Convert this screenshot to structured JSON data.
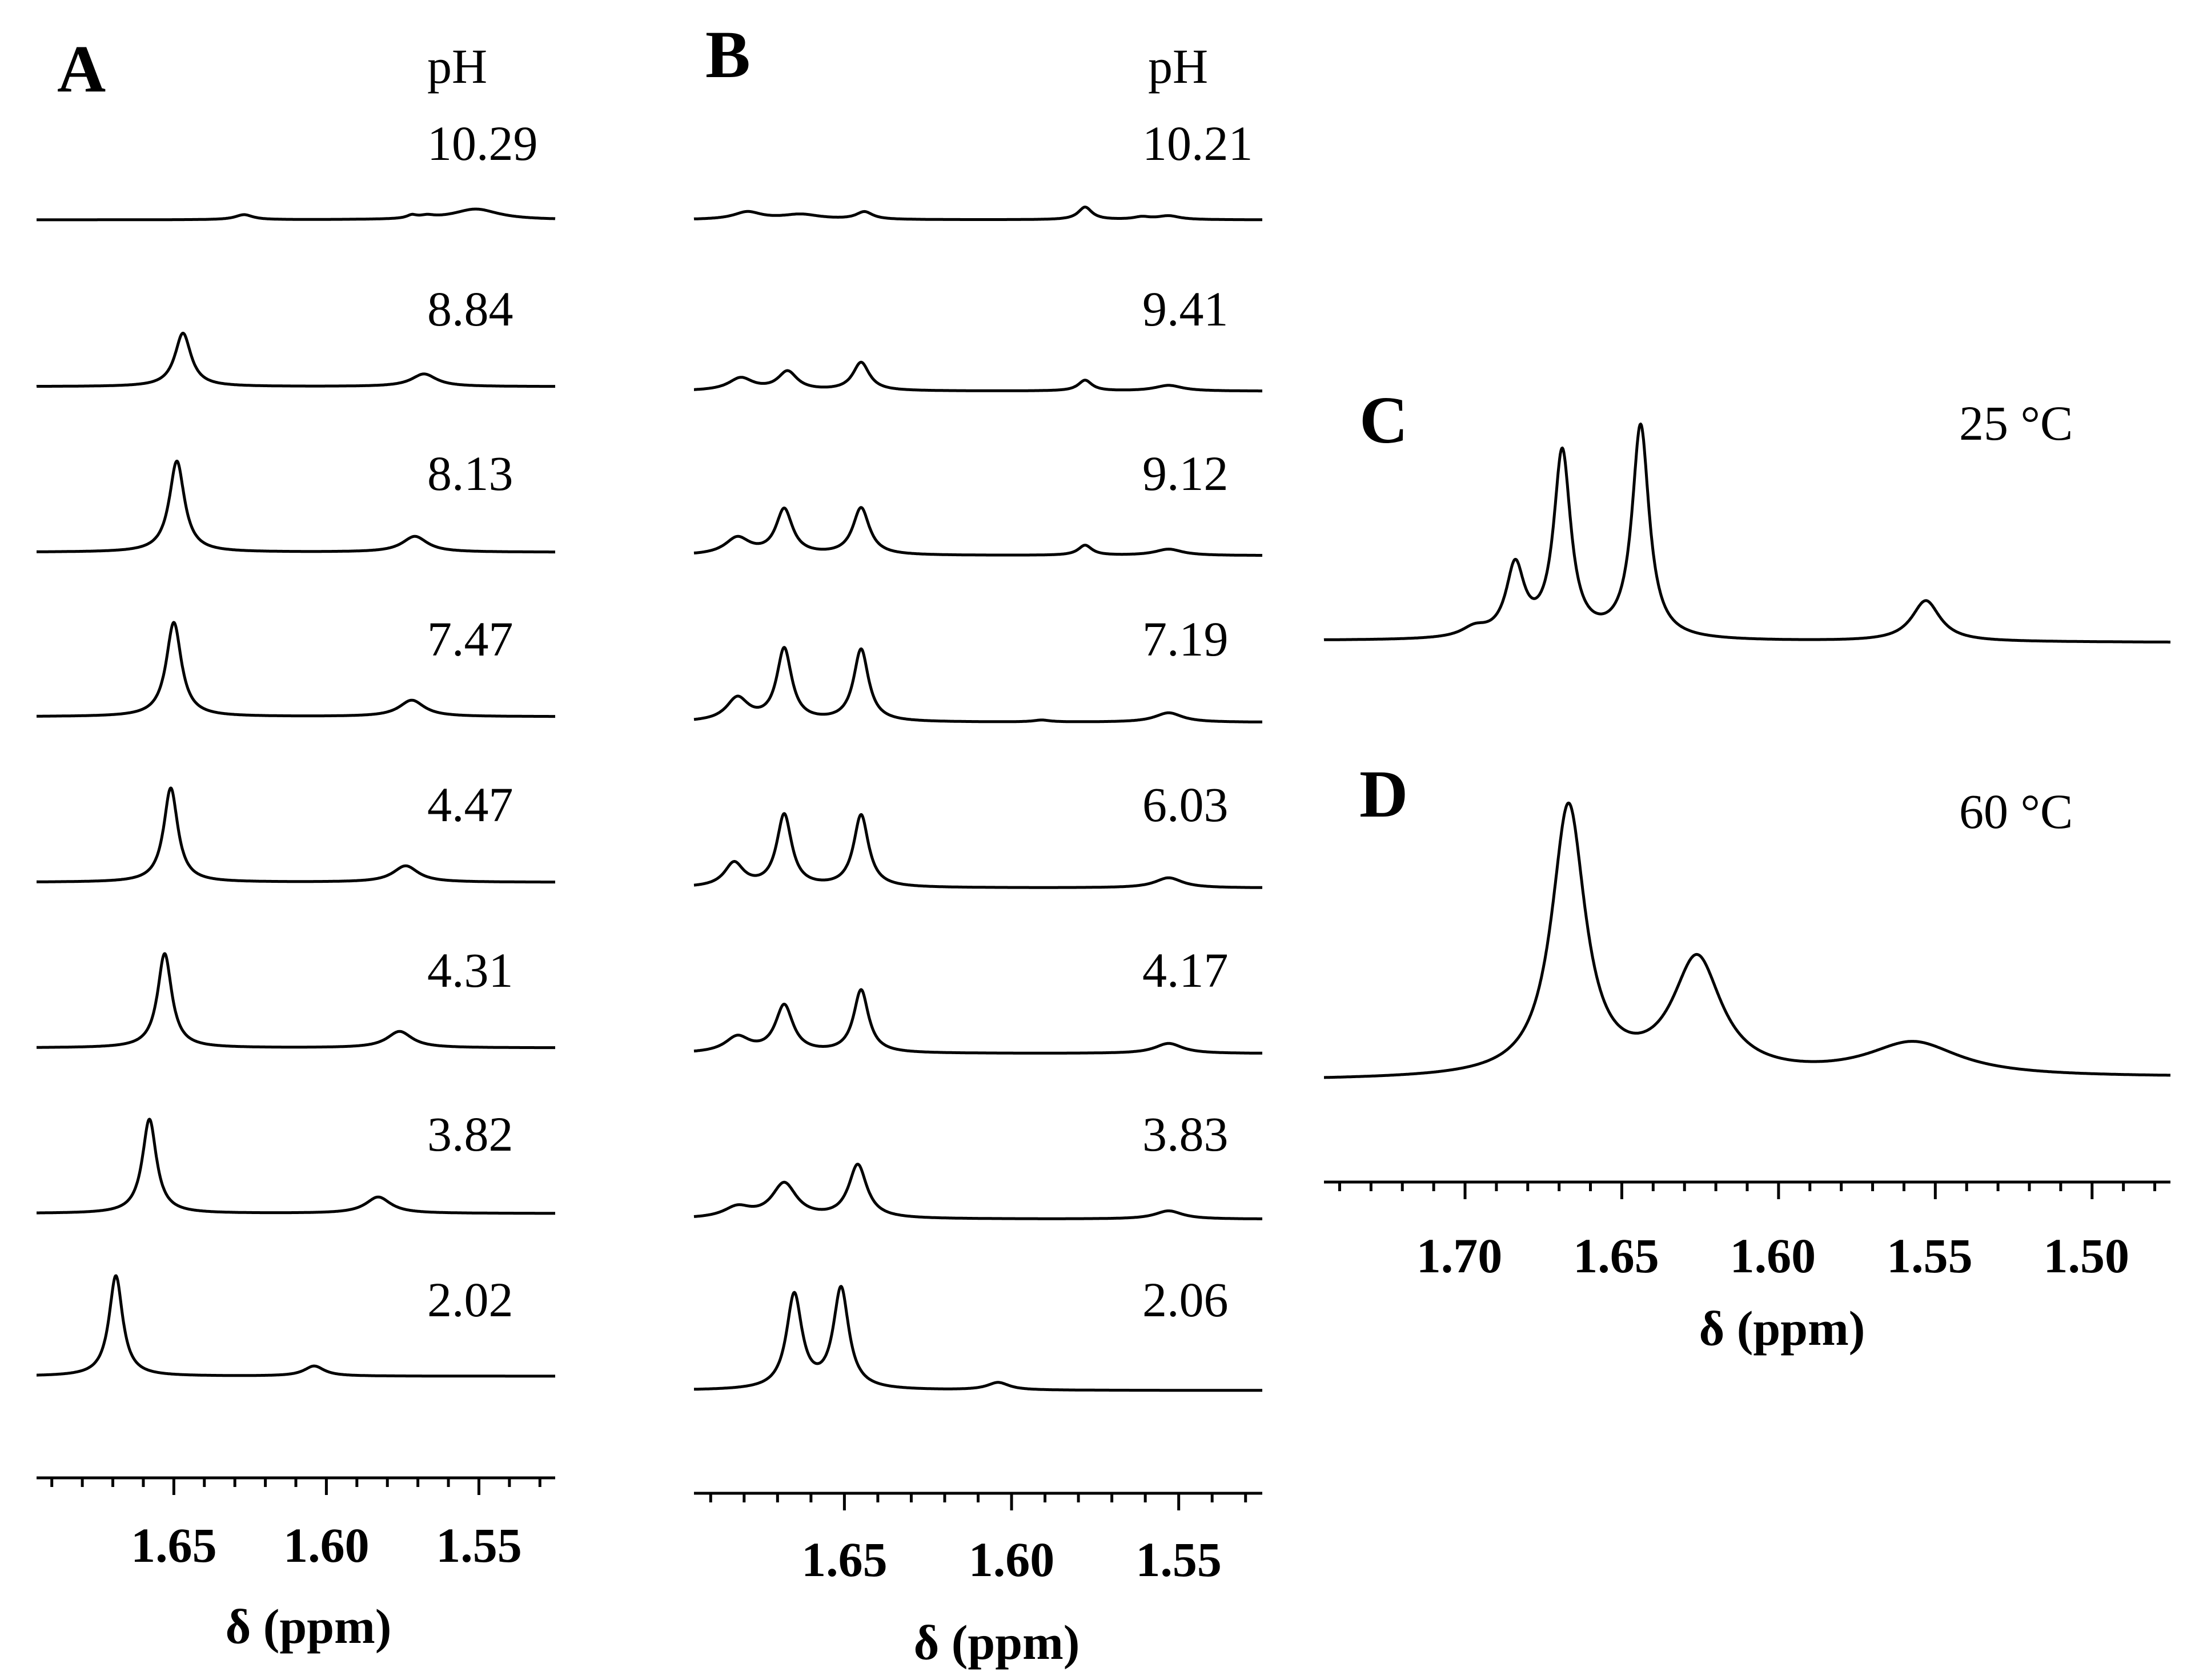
{
  "chart_data": [
    {
      "panel": "A",
      "type": "line",
      "title": "A",
      "subtitle": "pH",
      "xlabel": "δ (ppm)",
      "xlim": [
        1.695,
        1.525
      ],
      "xaxis_reversed": true,
      "major_ticks": [
        1.65,
        1.6,
        1.55
      ],
      "tick_labels": [
        "1.65",
        "1.60",
        "1.55"
      ],
      "minor_ticks": [
        1.69,
        1.68,
        1.67,
        1.66,
        1.64,
        1.63,
        1.62,
        1.61,
        1.59,
        1.58,
        1.57,
        1.56,
        1.54,
        1.53
      ],
      "series": [
        {
          "name": "10.29",
          "peaks": [
            {
              "ppm": 1.627,
              "height": 0.08,
              "width": 0.0035
            },
            {
              "ppm": 1.572,
              "height": 0.05,
              "width": 0.002
            },
            {
              "ppm": 1.567,
              "height": 0.04,
              "width": 0.003
            },
            {
              "ppm": 1.551,
              "height": 0.17,
              "width": 0.009
            }
          ]
        },
        {
          "name": "8.84",
          "peaks": [
            {
              "ppm": 1.647,
              "height": 0.85,
              "width": 0.0032
            },
            {
              "ppm": 1.568,
              "height": 0.2,
              "width": 0.005
            }
          ]
        },
        {
          "name": "8.13",
          "peaks": [
            {
              "ppm": 1.649,
              "height": 1.45,
              "width": 0.003
            },
            {
              "ppm": 1.571,
              "height": 0.25,
              "width": 0.005
            }
          ]
        },
        {
          "name": "7.47",
          "peaks": [
            {
              "ppm": 1.65,
              "height": 1.5,
              "width": 0.003
            },
            {
              "ppm": 1.572,
              "height": 0.26,
              "width": 0.005
            }
          ]
        },
        {
          "name": "4.47",
          "peaks": [
            {
              "ppm": 1.651,
              "height": 1.5,
              "width": 0.0028
            },
            {
              "ppm": 1.574,
              "height": 0.26,
              "width": 0.005
            }
          ]
        },
        {
          "name": "4.31",
          "peaks": [
            {
              "ppm": 1.653,
              "height": 1.5,
              "width": 0.0028
            },
            {
              "ppm": 1.576,
              "height": 0.26,
              "width": 0.005
            }
          ]
        },
        {
          "name": "3.82",
          "peaks": [
            {
              "ppm": 1.658,
              "height": 1.5,
              "width": 0.0028
            },
            {
              "ppm": 1.583,
              "height": 0.26,
              "width": 0.005
            }
          ]
        },
        {
          "name": "2.02",
          "peaks": [
            {
              "ppm": 1.669,
              "height": 1.6,
              "width": 0.0027
            },
            {
              "ppm": 1.604,
              "height": 0.16,
              "width": 0.004
            }
          ]
        }
      ]
    },
    {
      "panel": "B",
      "type": "line",
      "title": "B",
      "subtitle": "pH",
      "xlabel": "δ (ppm)",
      "xlim": [
        1.695,
        1.525
      ],
      "xaxis_reversed": true,
      "major_ticks": [
        1.65,
        1.6,
        1.55
      ],
      "tick_labels": [
        "1.65",
        "1.60",
        "1.55"
      ],
      "minor_ticks": [
        1.69,
        1.68,
        1.67,
        1.66,
        1.64,
        1.63,
        1.62,
        1.61,
        1.59,
        1.58,
        1.57,
        1.56,
        1.54,
        1.53
      ],
      "series": [
        {
          "name": "10.21",
          "peaks": [
            {
              "ppm": 1.679,
              "height": 0.12,
              "width": 0.005
            },
            {
              "ppm": 1.663,
              "height": 0.08,
              "width": 0.007
            },
            {
              "ppm": 1.644,
              "height": 0.12,
              "width": 0.003
            },
            {
              "ppm": 1.578,
              "height": 0.2,
              "width": 0.0025
            },
            {
              "ppm": 1.561,
              "height": 0.04,
              "width": 0.003
            },
            {
              "ppm": 1.553,
              "height": 0.06,
              "width": 0.004
            }
          ]
        },
        {
          "name": "9.41",
          "peaks": [
            {
              "ppm": 1.681,
              "height": 0.2,
              "width": 0.0045
            },
            {
              "ppm": 1.667,
              "height": 0.3,
              "width": 0.0035
            },
            {
              "ppm": 1.645,
              "height": 0.45,
              "width": 0.003
            },
            {
              "ppm": 1.578,
              "height": 0.17,
              "width": 0.0025
            },
            {
              "ppm": 1.553,
              "height": 0.09,
              "width": 0.005
            }
          ]
        },
        {
          "name": "9.12",
          "peaks": [
            {
              "ppm": 1.682,
              "height": 0.27,
              "width": 0.0045
            },
            {
              "ppm": 1.668,
              "height": 0.72,
              "width": 0.003
            },
            {
              "ppm": 1.645,
              "height": 0.75,
              "width": 0.003
            },
            {
              "ppm": 1.578,
              "height": 0.16,
              "width": 0.0025
            },
            {
              "ppm": 1.553,
              "height": 0.1,
              "width": 0.005
            }
          ]
        },
        {
          "name": "7.19",
          "peaks": [
            {
              "ppm": 1.682,
              "height": 0.37,
              "width": 0.004
            },
            {
              "ppm": 1.668,
              "height": 1.15,
              "width": 0.0027
            },
            {
              "ppm": 1.645,
              "height": 1.15,
              "width": 0.0027
            },
            {
              "ppm": 1.591,
              "height": 0.03,
              "width": 0.003
            },
            {
              "ppm": 1.553,
              "height": 0.15,
              "width": 0.005
            }
          ]
        },
        {
          "name": "6.03",
          "peaks": [
            {
              "ppm": 1.683,
              "height": 0.38,
              "width": 0.0035
            },
            {
              "ppm": 1.668,
              "height": 1.15,
              "width": 0.0027
            },
            {
              "ppm": 1.645,
              "height": 1.15,
              "width": 0.0027
            },
            {
              "ppm": 1.553,
              "height": 0.16,
              "width": 0.005
            }
          ]
        },
        {
          "name": "4.17",
          "peaks": [
            {
              "ppm": 1.682,
              "height": 0.25,
              "width": 0.0045
            },
            {
              "ppm": 1.668,
              "height": 0.75,
              "width": 0.0032
            },
            {
              "ppm": 1.645,
              "height": 1.0,
              "width": 0.0027
            },
            {
              "ppm": 1.553,
              "height": 0.16,
              "width": 0.005
            }
          ]
        },
        {
          "name": "3.83",
          "peaks": [
            {
              "ppm": 1.682,
              "height": 0.17,
              "width": 0.005
            },
            {
              "ppm": 1.668,
              "height": 0.55,
              "width": 0.0045
            },
            {
              "ppm": 1.646,
              "height": 0.85,
              "width": 0.0033
            },
            {
              "ppm": 1.553,
              "height": 0.13,
              "width": 0.005
            }
          ]
        },
        {
          "name": "2.06",
          "peaks": [
            {
              "ppm": 1.665,
              "height": 1.5,
              "width": 0.0028
            },
            {
              "ppm": 1.651,
              "height": 1.6,
              "width": 0.0028
            },
            {
              "ppm": 1.604,
              "height": 0.12,
              "width": 0.004
            }
          ]
        }
      ]
    },
    {
      "panel": "C",
      "type": "line",
      "title": "C",
      "annotation": "25 °C",
      "xlim": [
        1.745,
        1.475
      ],
      "xaxis_reversed": true,
      "peaks": [
        {
          "ppm": 1.697,
          "height": 0.05,
          "width": 0.005
        },
        {
          "ppm": 1.684,
          "height": 0.38,
          "width": 0.0035
        },
        {
          "ppm": 1.669,
          "height": 1.0,
          "width": 0.0033
        },
        {
          "ppm": 1.644,
          "height": 1.15,
          "width": 0.0033
        },
        {
          "ppm": 1.553,
          "height": 0.22,
          "width": 0.0055
        }
      ]
    },
    {
      "panel": "D",
      "type": "line",
      "title": "D",
      "annotation": "60 °C",
      "xlabel": "δ (ppm)",
      "xlim": [
        1.745,
        1.475
      ],
      "xaxis_reversed": true,
      "major_ticks": [
        1.7,
        1.65,
        1.6,
        1.55,
        1.5
      ],
      "tick_labels": [
        "1.70",
        "1.65",
        "1.60",
        "1.55",
        "1.50"
      ],
      "minor_ticks": [
        1.74,
        1.73,
        1.72,
        1.71,
        1.69,
        1.68,
        1.67,
        1.66,
        1.64,
        1.63,
        1.62,
        1.61,
        1.59,
        1.58,
        1.57,
        1.56,
        1.54,
        1.53,
        1.52,
        1.51,
        1.49,
        1.48
      ],
      "peaks": [
        {
          "ppm": 1.667,
          "height": 1.35,
          "width": 0.0065
        },
        {
          "ppm": 1.626,
          "height": 0.58,
          "width": 0.0095
        },
        {
          "ppm": 1.557,
          "height": 0.17,
          "width": 0.018
        }
      ]
    }
  ]
}
